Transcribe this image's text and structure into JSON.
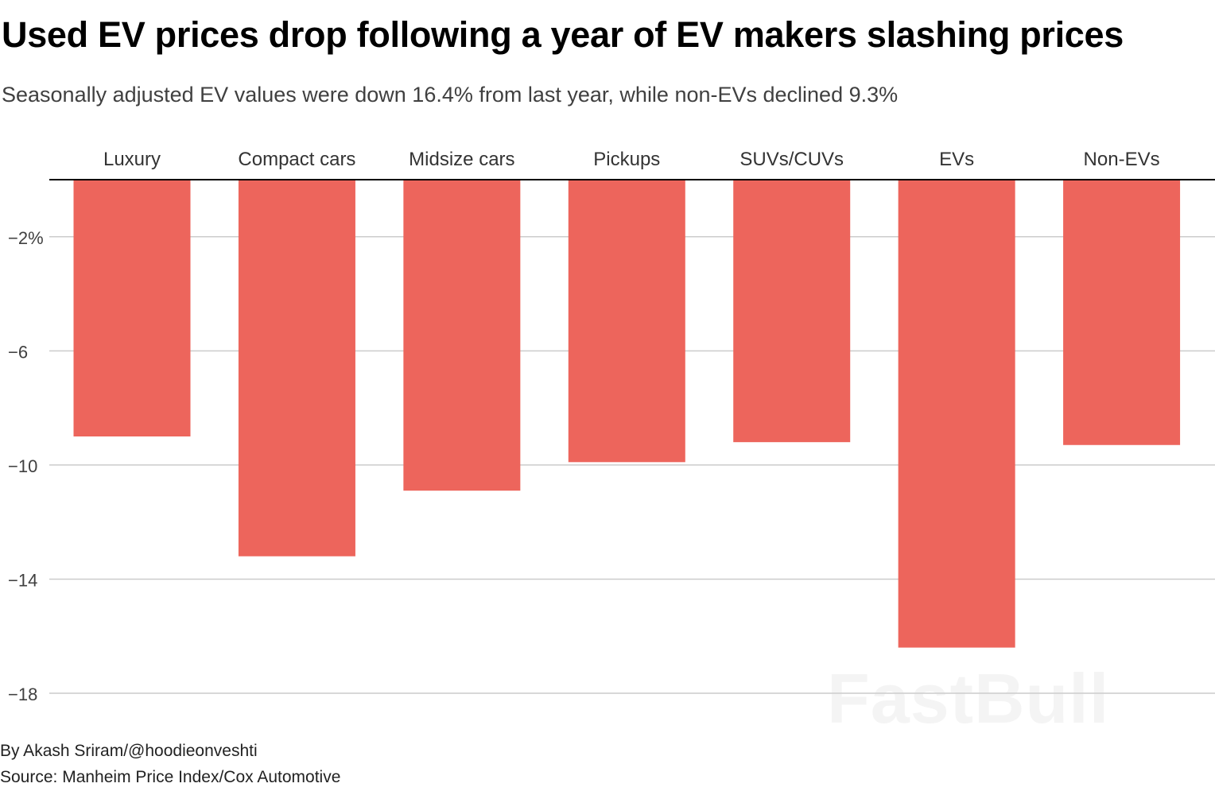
{
  "title": "Used EV prices drop following a year of EV makers slashing prices",
  "subtitle": "Seasonally adjusted EV values were down 16.4% from last year, while non-EVs declined 9.3%",
  "byline": "By Akash Sriram/@hoodieonveshti",
  "source": "Source: Manheim Price Index/Cox Automotive",
  "watermark": "FastBull",
  "colors": {
    "bar": "#ed655c",
    "grid": "#cccccc",
    "zero_line": "#000000",
    "tick_text": "#404040"
  },
  "chart_data": {
    "type": "bar",
    "title": "Used EV prices drop following a year of EV makers slashing prices",
    "subtitle": "Seasonally adjusted EV values were down 16.4% from last year, while non-EVs declined 9.3%",
    "categories": [
      "Luxury",
      "Compact cars",
      "Midsize cars",
      "Pickups",
      "SUVs/CUVs",
      "EVs",
      "Non-EVs"
    ],
    "values": [
      -9.0,
      -13.2,
      -10.9,
      -9.9,
      -9.2,
      -16.4,
      -9.3
    ],
    "ylim": [
      -18,
      0
    ],
    "yticks": [
      -2,
      -6,
      -10,
      -14,
      -18
    ],
    "ytick_labels": [
      "−2%",
      "−6",
      "−10",
      "−14",
      "−18"
    ],
    "xlabel": "",
    "ylabel": "",
    "category_labels_position": "top",
    "grid": true,
    "legend": "none"
  }
}
